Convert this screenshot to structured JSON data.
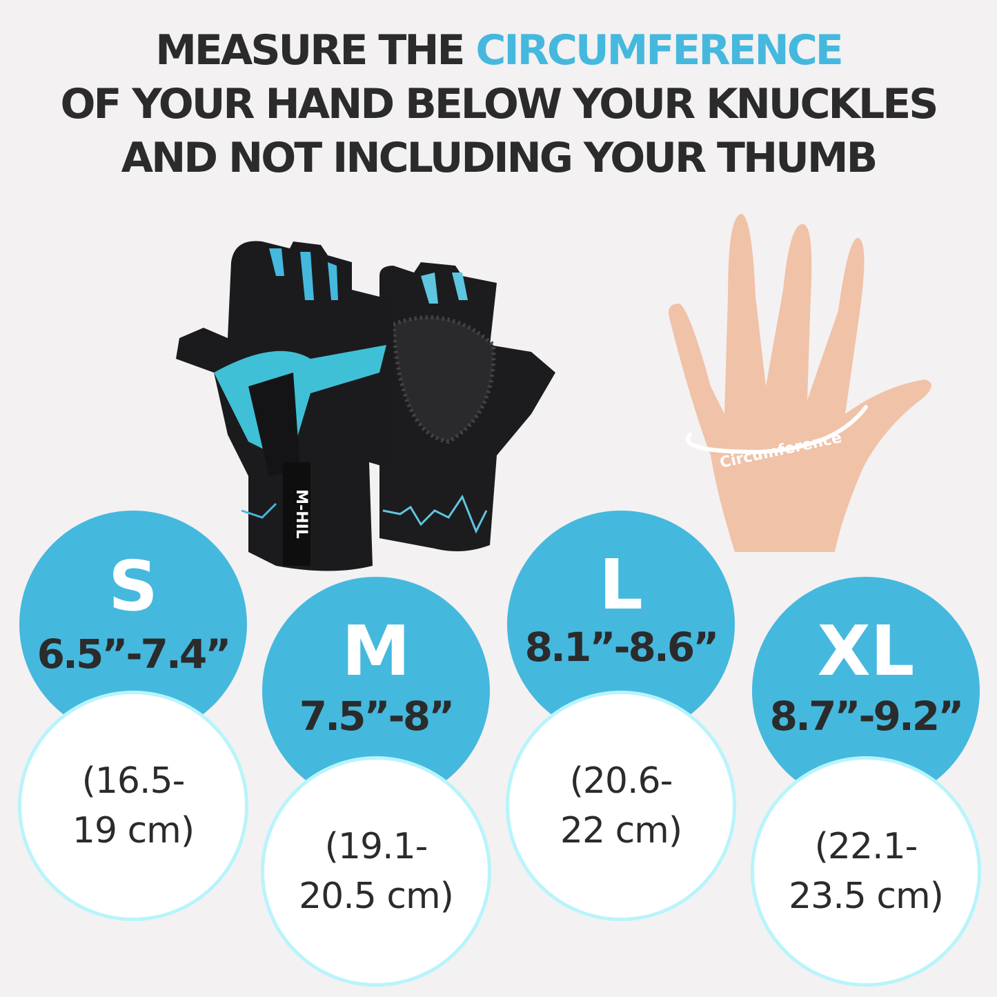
{
  "heading": {
    "line1_pre": "MEASURE THE ",
    "line1_accent": "CIRCUMFERENCE",
    "line2": "OF YOUR HAND BELOW YOUR KNUCKLES",
    "line3": "AND NOT  INCLUDING YOUR THUMB"
  },
  "hand_label": "Circumference",
  "glove_brand": "M-HIL",
  "colors": {
    "accent": "#45b8de",
    "text": "#2b2b2b",
    "white_circle_border": "#b8f4fb",
    "background": "#f3f1f2"
  },
  "sizes": [
    {
      "size": "S",
      "inches": "6.5”-7.4”",
      "cm_line1": "(16.5-",
      "cm_line2": "19 cm)"
    },
    {
      "size": "M",
      "inches": "7.5”-8”",
      "cm_line1": "(19.1-",
      "cm_line2": "20.5 cm)"
    },
    {
      "size": "L",
      "inches": "8.1”-8.6”",
      "cm_line1": "(20.6-",
      "cm_line2": "22 cm)"
    },
    {
      "size": "XL",
      "inches": "8.7”-9.2”",
      "cm_line1": "(22.1-",
      "cm_line2": "23.5 cm)"
    }
  ]
}
